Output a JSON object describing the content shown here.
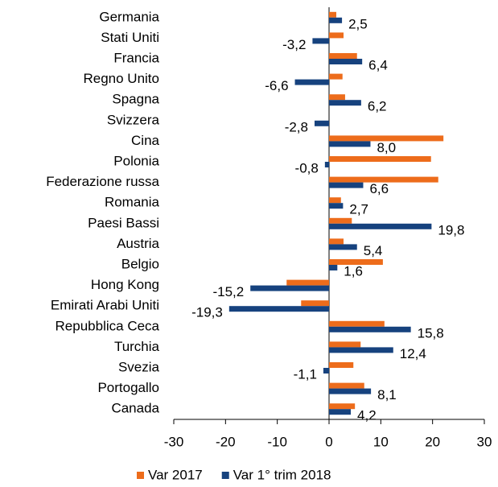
{
  "chart_data": {
    "type": "bar",
    "orientation": "horizontal",
    "categories": [
      "Germania",
      "Stati Uniti",
      "Francia",
      "Regno Unito",
      "Spagna",
      "Svizzera",
      "Cina",
      "Polonia",
      "Federazione russa",
      "Romania",
      "Paesi Bassi",
      "Austria",
      "Belgio",
      "Hong Kong",
      "Emirati Arabi Uniti",
      "Repubblica Ceca",
      "Turchia",
      "Svezia",
      "Portogallo",
      "Canada"
    ],
    "series": [
      {
        "name": "Var 2017",
        "color": "#ed6c1b",
        "values": [
          1.4,
          2.8,
          5.4,
          2.6,
          3.1,
          0,
          22.1,
          19.7,
          21.1,
          2.3,
          4.4,
          2.8,
          10.4,
          -8.2,
          -5.4,
          10.7,
          6.1,
          4.7,
          6.8,
          5.0
        ]
      },
      {
        "name": "Var 1° trim 2018",
        "color": "#16427e",
        "values": [
          2.5,
          -3.2,
          6.4,
          -6.6,
          6.2,
          -2.8,
          8.0,
          -0.8,
          6.6,
          2.7,
          19.8,
          5.4,
          1.6,
          -15.2,
          -19.3,
          15.8,
          12.4,
          -1.1,
          8.1,
          4.2
        ],
        "value_labels": [
          "2,5",
          "-3,2",
          "6,4",
          "-6,6",
          "6,2",
          "-2,8",
          "8,0",
          "-0,8",
          "6,6",
          "2,7",
          "19,8",
          "5,4",
          "1,6",
          "-15,2",
          "-19,3",
          "15,8",
          "12,4",
          "-1,1",
          "8,1",
          "4,2"
        ]
      }
    ],
    "xlim": [
      -30,
      30
    ],
    "xticks": [
      -30,
      -20,
      -10,
      0,
      10,
      20,
      30
    ],
    "legend": "bottom"
  }
}
